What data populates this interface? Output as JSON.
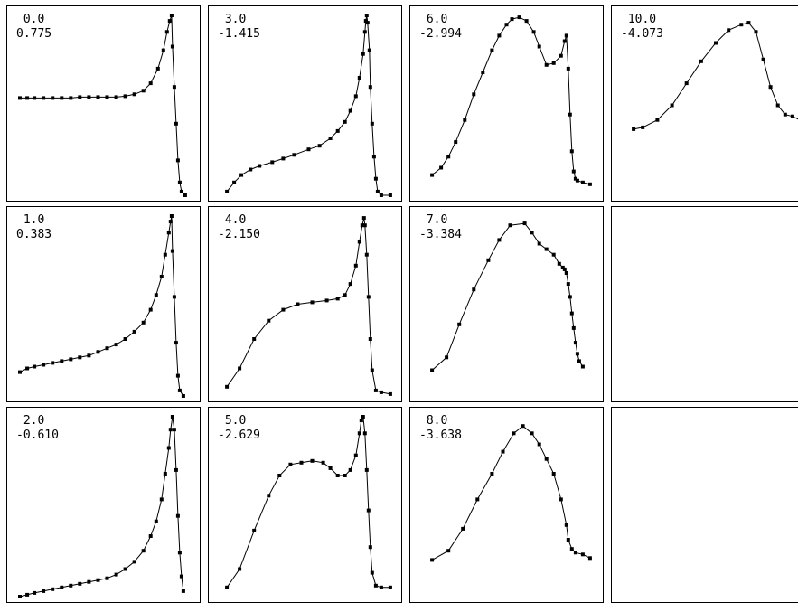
{
  "colors": {
    "background": "#ffffff",
    "line": "#000000",
    "frame": "#000000"
  },
  "chart_data": {
    "type": "line",
    "layout": {
      "rows": 3,
      "cols": 4
    },
    "grid": false,
    "legend": "none",
    "panels": [
      {
        "id": "p0",
        "row": 0,
        "col": 0,
        "label1": "0.0",
        "label2": "0.775",
        "points": [
          [
            0.02,
            0.46
          ],
          [
            0.06,
            0.46
          ],
          [
            0.1,
            0.46
          ],
          [
            0.15,
            0.46
          ],
          [
            0.2,
            0.46
          ],
          [
            0.25,
            0.46
          ],
          [
            0.3,
            0.46
          ],
          [
            0.35,
            0.455
          ],
          [
            0.4,
            0.455
          ],
          [
            0.45,
            0.455
          ],
          [
            0.5,
            0.455
          ],
          [
            0.55,
            0.455
          ],
          [
            0.6,
            0.45
          ],
          [
            0.65,
            0.44
          ],
          [
            0.7,
            0.42
          ],
          [
            0.74,
            0.38
          ],
          [
            0.78,
            0.3
          ],
          [
            0.81,
            0.2
          ],
          [
            0.83,
            0.1
          ],
          [
            0.845,
            0.04
          ],
          [
            0.855,
            0.01
          ],
          [
            0.86,
            0.18
          ],
          [
            0.87,
            0.4
          ],
          [
            0.88,
            0.6
          ],
          [
            0.89,
            0.8
          ],
          [
            0.9,
            0.92
          ],
          [
            0.91,
            0.97
          ],
          [
            0.93,
            0.99
          ]
        ]
      },
      {
        "id": "p1",
        "row": 0,
        "col": 1,
        "label1": "3.0",
        "label2": "-1.415",
        "points": [
          [
            0.05,
            0.97
          ],
          [
            0.09,
            0.92
          ],
          [
            0.13,
            0.88
          ],
          [
            0.18,
            0.85
          ],
          [
            0.23,
            0.83
          ],
          [
            0.3,
            0.81
          ],
          [
            0.36,
            0.79
          ],
          [
            0.42,
            0.77
          ],
          [
            0.5,
            0.74
          ],
          [
            0.56,
            0.72
          ],
          [
            0.62,
            0.68
          ],
          [
            0.66,
            0.64
          ],
          [
            0.7,
            0.59
          ],
          [
            0.73,
            0.53
          ],
          [
            0.76,
            0.45
          ],
          [
            0.78,
            0.35
          ],
          [
            0.8,
            0.22
          ],
          [
            0.81,
            0.1
          ],
          [
            0.815,
            0.04
          ],
          [
            0.82,
            0.01
          ],
          [
            0.825,
            0.05
          ],
          [
            0.835,
            0.2
          ],
          [
            0.84,
            0.4
          ],
          [
            0.85,
            0.6
          ],
          [
            0.86,
            0.78
          ],
          [
            0.87,
            0.9
          ],
          [
            0.88,
            0.97
          ],
          [
            0.9,
            0.99
          ],
          [
            0.95,
            0.99
          ]
        ]
      },
      {
        "id": "p2",
        "row": 0,
        "col": 2,
        "label1": "6.0",
        "label2": "-2.994",
        "points": [
          [
            0.07,
            0.88
          ],
          [
            0.12,
            0.84
          ],
          [
            0.16,
            0.78
          ],
          [
            0.2,
            0.7
          ],
          [
            0.25,
            0.58
          ],
          [
            0.3,
            0.44
          ],
          [
            0.35,
            0.32
          ],
          [
            0.4,
            0.2
          ],
          [
            0.44,
            0.12
          ],
          [
            0.48,
            0.06
          ],
          [
            0.51,
            0.03
          ],
          [
            0.55,
            0.02
          ],
          [
            0.59,
            0.04
          ],
          [
            0.63,
            0.1
          ],
          [
            0.66,
            0.18
          ],
          [
            0.7,
            0.28
          ],
          [
            0.74,
            0.27
          ],
          [
            0.78,
            0.23
          ],
          [
            0.8,
            0.15
          ],
          [
            0.81,
            0.12
          ],
          [
            0.82,
            0.3
          ],
          [
            0.83,
            0.55
          ],
          [
            0.84,
            0.75
          ],
          [
            0.85,
            0.86
          ],
          [
            0.86,
            0.9
          ],
          [
            0.87,
            0.91
          ],
          [
            0.9,
            0.92
          ],
          [
            0.94,
            0.93
          ]
        ]
      },
      {
        "id": "p3",
        "row": 0,
        "col": 3,
        "label1": "10.0",
        "label2": "-4.073",
        "points": [
          [
            0.07,
            0.63
          ],
          [
            0.12,
            0.62
          ],
          [
            0.2,
            0.58
          ],
          [
            0.28,
            0.5
          ],
          [
            0.36,
            0.38
          ],
          [
            0.44,
            0.26
          ],
          [
            0.52,
            0.16
          ],
          [
            0.59,
            0.09
          ],
          [
            0.66,
            0.06
          ],
          [
            0.7,
            0.05
          ],
          [
            0.74,
            0.1
          ],
          [
            0.78,
            0.25
          ],
          [
            0.82,
            0.4
          ],
          [
            0.86,
            0.5
          ],
          [
            0.9,
            0.55
          ],
          [
            0.94,
            0.56
          ],
          [
            0.98,
            0.58
          ],
          [
            1.0,
            0.58
          ]
        ]
      },
      {
        "id": "p4",
        "row": 1,
        "col": 0,
        "label1": "1.0",
        "label2": "0.383",
        "points": [
          [
            0.02,
            0.86
          ],
          [
            0.06,
            0.84
          ],
          [
            0.1,
            0.83
          ],
          [
            0.15,
            0.82
          ],
          [
            0.2,
            0.81
          ],
          [
            0.25,
            0.8
          ],
          [
            0.3,
            0.79
          ],
          [
            0.35,
            0.78
          ],
          [
            0.4,
            0.77
          ],
          [
            0.45,
            0.75
          ],
          [
            0.5,
            0.73
          ],
          [
            0.55,
            0.71
          ],
          [
            0.6,
            0.68
          ],
          [
            0.65,
            0.64
          ],
          [
            0.7,
            0.59
          ],
          [
            0.74,
            0.52
          ],
          [
            0.77,
            0.44
          ],
          [
            0.8,
            0.34
          ],
          [
            0.82,
            0.22
          ],
          [
            0.84,
            0.1
          ],
          [
            0.85,
            0.04
          ],
          [
            0.855,
            0.01
          ],
          [
            0.86,
            0.2
          ],
          [
            0.87,
            0.45
          ],
          [
            0.88,
            0.7
          ],
          [
            0.89,
            0.88
          ],
          [
            0.9,
            0.96
          ],
          [
            0.92,
            0.99
          ]
        ]
      },
      {
        "id": "p5",
        "row": 1,
        "col": 1,
        "label1": "4.0",
        "label2": "-2.150",
        "points": [
          [
            0.05,
            0.94
          ],
          [
            0.12,
            0.84
          ],
          [
            0.2,
            0.68
          ],
          [
            0.28,
            0.58
          ],
          [
            0.36,
            0.52
          ],
          [
            0.44,
            0.49
          ],
          [
            0.52,
            0.48
          ],
          [
            0.6,
            0.47
          ],
          [
            0.66,
            0.46
          ],
          [
            0.7,
            0.44
          ],
          [
            0.73,
            0.38
          ],
          [
            0.76,
            0.28
          ],
          [
            0.78,
            0.15
          ],
          [
            0.795,
            0.06
          ],
          [
            0.805,
            0.02
          ],
          [
            0.81,
            0.06
          ],
          [
            0.82,
            0.22
          ],
          [
            0.83,
            0.45
          ],
          [
            0.84,
            0.68
          ],
          [
            0.85,
            0.85
          ],
          [
            0.87,
            0.96
          ],
          [
            0.9,
            0.97
          ],
          [
            0.95,
            0.98
          ]
        ]
      },
      {
        "id": "p6",
        "row": 1,
        "col": 2,
        "label1": "7.0",
        "label2": "-3.384",
        "points": [
          [
            0.07,
            0.85
          ],
          [
            0.15,
            0.78
          ],
          [
            0.22,
            0.6
          ],
          [
            0.3,
            0.41
          ],
          [
            0.38,
            0.25
          ],
          [
            0.44,
            0.14
          ],
          [
            0.5,
            0.06
          ],
          [
            0.58,
            0.05
          ],
          [
            0.62,
            0.1
          ],
          [
            0.66,
            0.16
          ],
          [
            0.7,
            0.19
          ],
          [
            0.74,
            0.22
          ],
          [
            0.77,
            0.27
          ],
          [
            0.79,
            0.29
          ],
          [
            0.8,
            0.3
          ],
          [
            0.81,
            0.32
          ],
          [
            0.82,
            0.38
          ],
          [
            0.83,
            0.45
          ],
          [
            0.84,
            0.54
          ],
          [
            0.85,
            0.62
          ],
          [
            0.86,
            0.7
          ],
          [
            0.87,
            0.76
          ],
          [
            0.88,
            0.8
          ],
          [
            0.9,
            0.83
          ]
        ]
      },
      {
        "id": "p7",
        "row": 1,
        "col": 3,
        "label1": "",
        "label2": "",
        "points": []
      },
      {
        "id": "p8",
        "row": 2,
        "col": 0,
        "label1": "2.0",
        "label2": "-0.610",
        "points": [
          [
            0.02,
            0.99
          ],
          [
            0.06,
            0.98
          ],
          [
            0.1,
            0.97
          ],
          [
            0.15,
            0.96
          ],
          [
            0.2,
            0.95
          ],
          [
            0.25,
            0.94
          ],
          [
            0.3,
            0.93
          ],
          [
            0.35,
            0.92
          ],
          [
            0.4,
            0.91
          ],
          [
            0.45,
            0.9
          ],
          [
            0.5,
            0.89
          ],
          [
            0.55,
            0.87
          ],
          [
            0.6,
            0.84
          ],
          [
            0.65,
            0.8
          ],
          [
            0.7,
            0.74
          ],
          [
            0.74,
            0.66
          ],
          [
            0.77,
            0.58
          ],
          [
            0.8,
            0.46
          ],
          [
            0.82,
            0.32
          ],
          [
            0.84,
            0.18
          ],
          [
            0.85,
            0.08
          ],
          [
            0.86,
            0.01
          ],
          [
            0.87,
            0.08
          ],
          [
            0.88,
            0.3
          ],
          [
            0.89,
            0.55
          ],
          [
            0.9,
            0.75
          ],
          [
            0.91,
            0.88
          ],
          [
            0.92,
            0.96
          ]
        ]
      },
      {
        "id": "p9",
        "row": 2,
        "col": 1,
        "label1": "5.0",
        "label2": "-2.629",
        "points": [
          [
            0.05,
            0.94
          ],
          [
            0.12,
            0.84
          ],
          [
            0.2,
            0.63
          ],
          [
            0.28,
            0.44
          ],
          [
            0.34,
            0.33
          ],
          [
            0.4,
            0.27
          ],
          [
            0.46,
            0.26
          ],
          [
            0.52,
            0.25
          ],
          [
            0.58,
            0.26
          ],
          [
            0.62,
            0.29
          ],
          [
            0.66,
            0.33
          ],
          [
            0.7,
            0.33
          ],
          [
            0.73,
            0.3
          ],
          [
            0.76,
            0.22
          ],
          [
            0.78,
            0.1
          ],
          [
            0.79,
            0.03
          ],
          [
            0.8,
            0.01
          ],
          [
            0.81,
            0.1
          ],
          [
            0.82,
            0.3
          ],
          [
            0.83,
            0.52
          ],
          [
            0.84,
            0.72
          ],
          [
            0.85,
            0.86
          ],
          [
            0.87,
            0.93
          ],
          [
            0.9,
            0.94
          ],
          [
            0.95,
            0.94
          ]
        ]
      },
      {
        "id": "p10",
        "row": 2,
        "col": 2,
        "label1": "8.0",
        "label2": "-3.638",
        "points": [
          [
            0.07,
            0.79
          ],
          [
            0.16,
            0.74
          ],
          [
            0.24,
            0.62
          ],
          [
            0.32,
            0.46
          ],
          [
            0.4,
            0.32
          ],
          [
            0.46,
            0.2
          ],
          [
            0.52,
            0.1
          ],
          [
            0.57,
            0.06
          ],
          [
            0.62,
            0.1
          ],
          [
            0.66,
            0.16
          ],
          [
            0.7,
            0.24
          ],
          [
            0.74,
            0.32
          ],
          [
            0.78,
            0.46
          ],
          [
            0.81,
            0.6
          ],
          [
            0.82,
            0.68
          ],
          [
            0.84,
            0.73
          ],
          [
            0.86,
            0.75
          ],
          [
            0.9,
            0.76
          ],
          [
            0.94,
            0.78
          ]
        ]
      },
      {
        "id": "p11",
        "row": 2,
        "col": 3,
        "label1": "",
        "label2": "",
        "points": []
      }
    ]
  }
}
